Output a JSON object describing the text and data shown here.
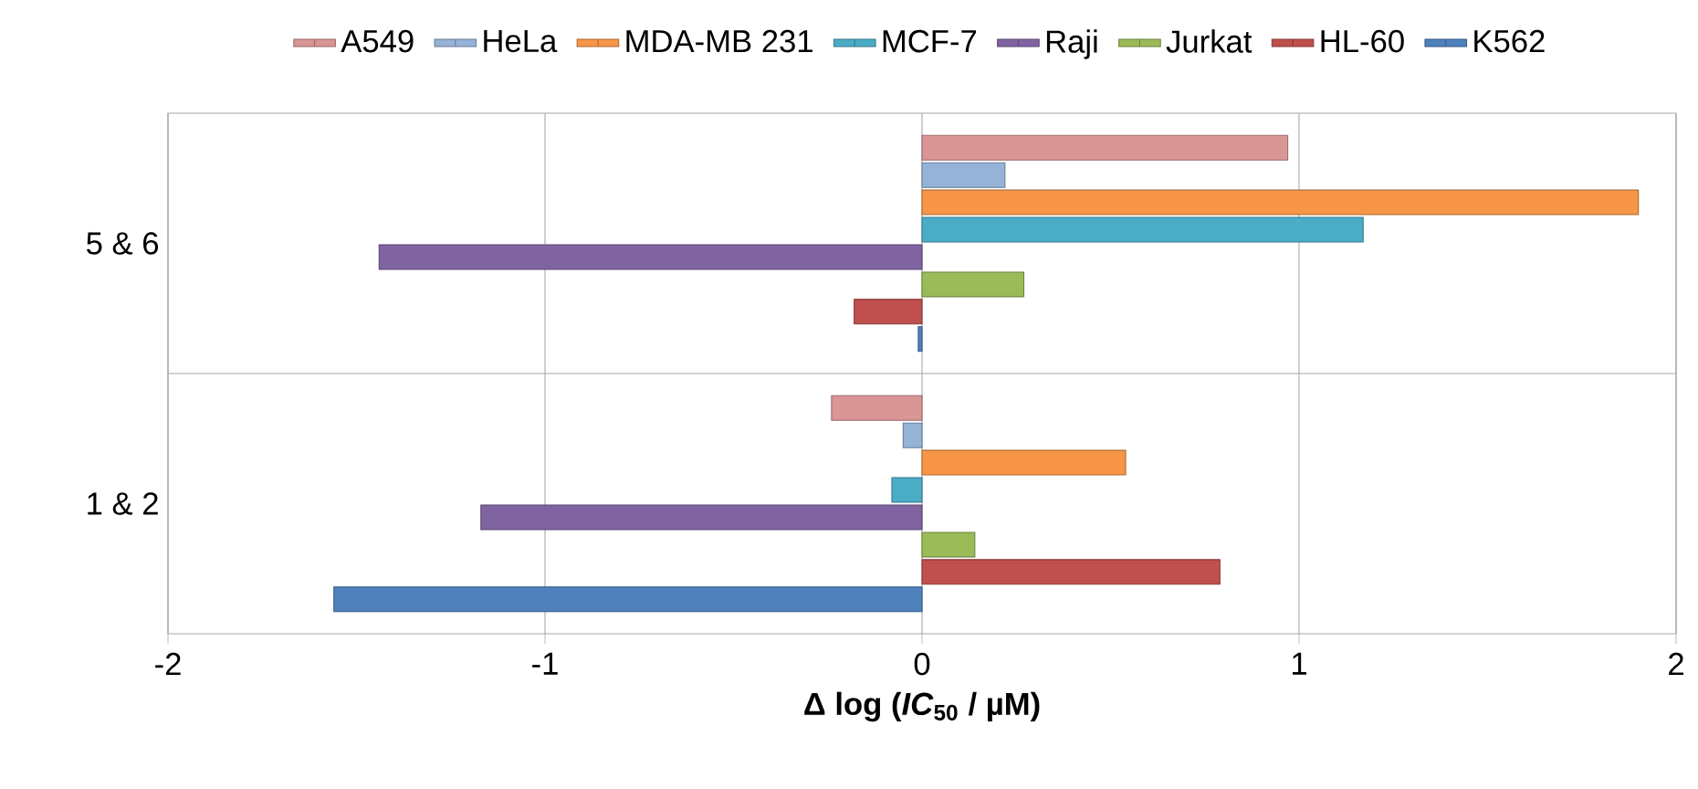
{
  "chart_data": {
    "type": "bar",
    "orientation": "horizontal",
    "xlabel": "Δ log (*IC*$_{50}$ / µM)",
    "categories": [
      "5 & 6",
      "1 & 2"
    ],
    "series": [
      {
        "name": "A549",
        "color": "#d99694",
        "values": [
          0.97,
          -0.24
        ]
      },
      {
        "name": "HeLa",
        "color": "#95b3d7",
        "values": [
          0.22,
          -0.05
        ]
      },
      {
        "name": "MDA-MB 231",
        "color": "#f79646",
        "values": [
          1.9,
          0.54
        ]
      },
      {
        "name": "MCF-7",
        "color": "#4bacc6",
        "values": [
          1.17,
          -0.08
        ]
      },
      {
        "name": "Raji",
        "color": "#8064a2",
        "values": [
          -1.44,
          -1.17
        ]
      },
      {
        "name": "Jurkat",
        "color": "#9bbb59",
        "values": [
          0.27,
          0.14
        ]
      },
      {
        "name": "HL-60",
        "color": "#c0504d",
        "values": [
          -0.18,
          0.79
        ]
      },
      {
        "name": "K562",
        "color": "#4f81bd",
        "values": [
          -0.01,
          -1.56
        ]
      }
    ],
    "xlim": [
      -2,
      2
    ],
    "xticks": [
      -2,
      -1,
      0,
      1,
      2
    ],
    "grid": true,
    "legend": "top"
  }
}
